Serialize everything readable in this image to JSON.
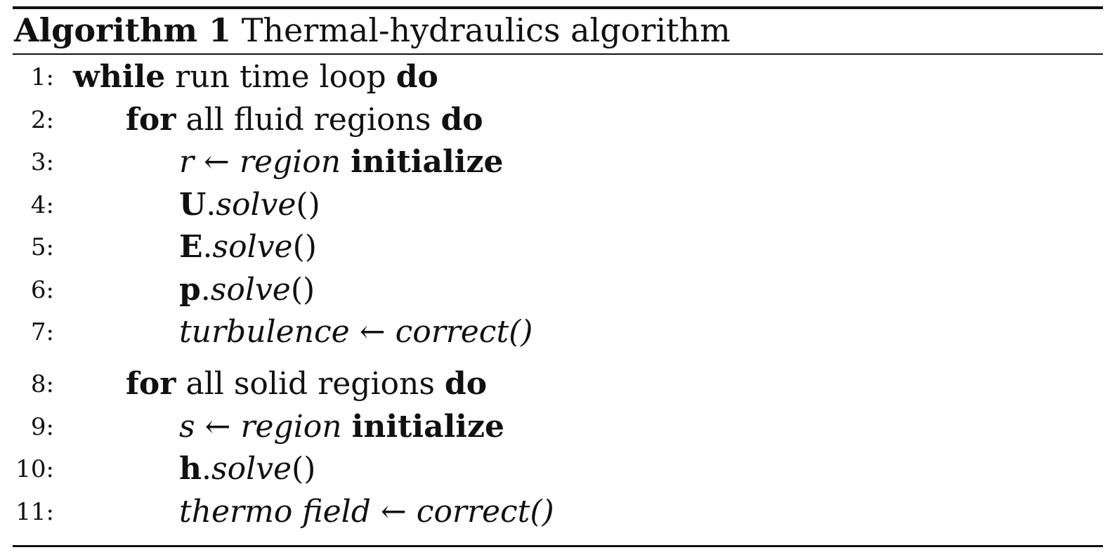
{
  "algorithm": {
    "label": "Algorithm 1",
    "title": "Thermal-hydraulics algorithm"
  },
  "lines": [
    {
      "no": "1:",
      "kw1": "while",
      "text": "run time loop",
      "kw2": "do"
    },
    {
      "no": "2:",
      "kw1": "for",
      "text": "all fluid regions",
      "kw2": "do"
    },
    {
      "no": "3:",
      "var": "r",
      "arrow": "←",
      "it": "region",
      "kw": "initialize"
    },
    {
      "no": "4:",
      "bf": "U",
      "dot": ".",
      "it": "solve",
      "paren": "()"
    },
    {
      "no": "5:",
      "bf": "E",
      "dot": ".",
      "it": "solve",
      "paren": "()"
    },
    {
      "no": "6:",
      "bf": "p",
      "dot": ".",
      "it": "solve",
      "paren": "()"
    },
    {
      "no": "7:",
      "it1": "turbulence",
      "arrow": "←",
      "it2": "correct()"
    },
    {
      "no": "8:",
      "kw1": "for",
      "text": "all solid regions",
      "kw2": "do"
    },
    {
      "no": "9:",
      "var": "s",
      "arrow": "←",
      "it": "region",
      "kw": "initialize"
    },
    {
      "no": "10:",
      "bf": "h",
      "dot": ".",
      "it": "solve",
      "paren": "()"
    },
    {
      "no": "11:",
      "it1": "thermo field",
      "arrow": "←",
      "it2": "correct()"
    }
  ]
}
